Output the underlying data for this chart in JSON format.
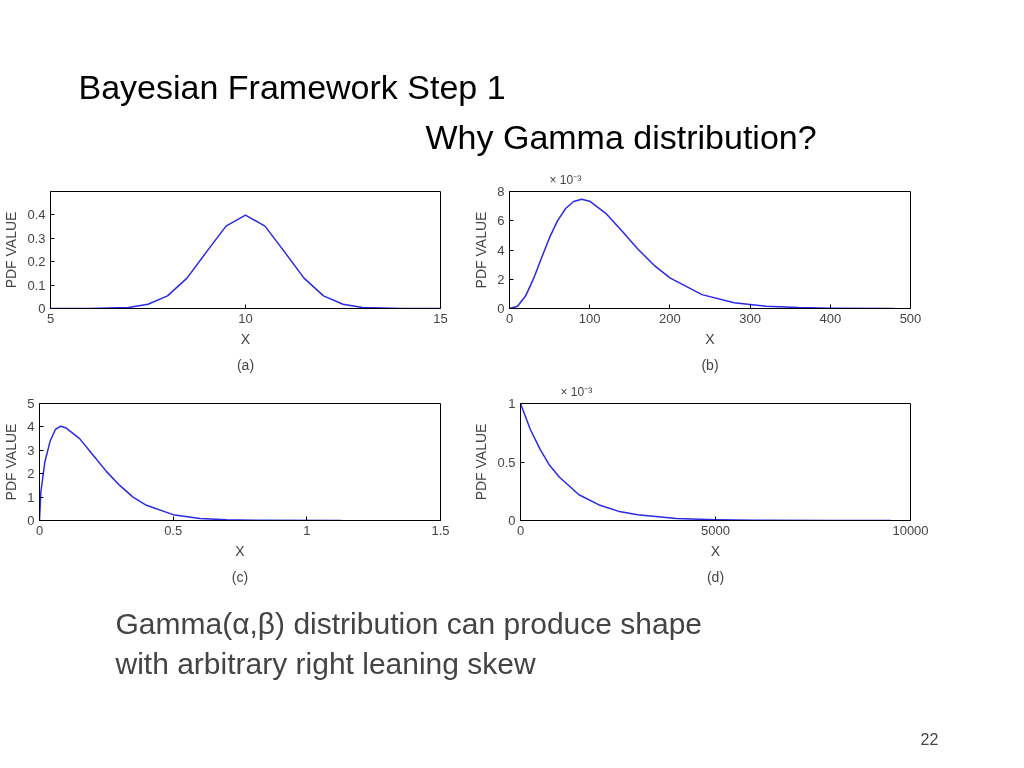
{
  "chart_data": [
    {
      "type": "other",
      "title": "Bayesian Framework Step 1",
      "subtitle": "Why Gamma distribution?",
      "annotations": [
        "Gamma(α,β) distribution can produce shape with arbitrary right leaning skew",
        "22"
      ]
    },
    {
      "type": "line",
      "xlabel": "X",
      "ylabel": "PDF VALUE",
      "annotations": [
        "(a)"
      ],
      "xlim": [
        5,
        15
      ],
      "xticks": [
        5,
        10,
        15
      ],
      "ylim": [
        0,
        0.5
      ],
      "yticks": [
        0,
        0.1,
        0.2,
        0.3,
        0.4
      ],
      "grid": false,
      "marker": "none",
      "line_style": "solid",
      "series": [
        {
          "color": "#2a2ae6",
          "x": [
            5,
            6,
            7,
            7.5,
            8,
            8.5,
            9,
            9.5,
            10,
            10.5,
            11,
            11.5,
            12,
            12.5,
            13,
            14,
            15
          ],
          "values": [
            0,
            0,
            0.004,
            0.018,
            0.054,
            0.13,
            0.242,
            0.352,
            0.399,
            0.352,
            0.242,
            0.13,
            0.054,
            0.018,
            0.004,
            0,
            0
          ]
        }
      ]
    },
    {
      "type": "line",
      "xlabel": "X",
      "ylabel": "PDF VALUE",
      "annotations": [
        "× 10⁻³",
        "(b)"
      ],
      "xlim": [
        0,
        500
      ],
      "xticks": [
        0,
        100,
        200,
        300,
        400,
        500
      ],
      "ylim": [
        0,
        8
      ],
      "yticks": [
        0,
        2,
        4,
        6,
        8
      ],
      "grid": false,
      "marker": "none",
      "line_style": "solid",
      "series": [
        {
          "color": "#2a2ae6",
          "x": [
            0,
            10,
            20,
            30,
            40,
            50,
            60,
            70,
            80,
            90,
            100,
            120,
            140,
            160,
            180,
            200,
            240,
            280,
            320,
            360,
            400,
            480
          ],
          "values": [
            0,
            0.15,
            0.85,
            2.04,
            3.47,
            4.86,
            6.01,
            6.84,
            7.32,
            7.47,
            7.34,
            6.51,
            5.31,
            4.07,
            2.97,
            2.09,
            0.95,
            0.4,
            0.16,
            0.06,
            0.02,
            0
          ]
        }
      ]
    },
    {
      "type": "line",
      "xlabel": "X",
      "ylabel": "PDF VALUE",
      "annotations": [
        "(c)"
      ],
      "xlim": [
        0,
        1.5
      ],
      "xticks": [
        0,
        0.5,
        1,
        1.5
      ],
      "ylim": [
        0,
        5
      ],
      "yticks": [
        0,
        1,
        2,
        3,
        4,
        5
      ],
      "grid": false,
      "marker": "none",
      "line_style": "solid",
      "series": [
        {
          "color": "#2a2ae6",
          "x": [
            0,
            0.005,
            0.02,
            0.04,
            0.06,
            0.08,
            0.1,
            0.15,
            0.2,
            0.25,
            0.3,
            0.35,
            0.4,
            0.5,
            0.6,
            0.7,
            0.8,
            1.13
          ],
          "values": [
            0,
            1.2,
            2.5,
            3.4,
            3.9,
            4.03,
            3.95,
            3.5,
            2.8,
            2.1,
            1.5,
            1.0,
            0.65,
            0.25,
            0.09,
            0.03,
            0.01,
            0
          ]
        }
      ]
    },
    {
      "type": "line",
      "xlabel": "X",
      "ylabel": "PDF VALUE",
      "annotations": [
        "× 10⁻³",
        "(d)"
      ],
      "xlim": [
        0,
        10000
      ],
      "xticks": [
        0,
        5000,
        10000
      ],
      "ylim": [
        0,
        1
      ],
      "yticks": [
        0,
        0.5,
        1
      ],
      "grid": false,
      "marker": "none",
      "line_style": "solid",
      "series": [
        {
          "color": "#2a2ae6",
          "x": [
            0,
            250,
            500,
            750,
            1000,
            1500,
            2000,
            2500,
            3000,
            4000,
            5000,
            6000,
            8000,
            9500
          ],
          "values": [
            1,
            0.78,
            0.61,
            0.47,
            0.37,
            0.22,
            0.135,
            0.08,
            0.05,
            0.018,
            0.007,
            0.002,
            0,
            0
          ]
        }
      ]
    }
  ]
}
